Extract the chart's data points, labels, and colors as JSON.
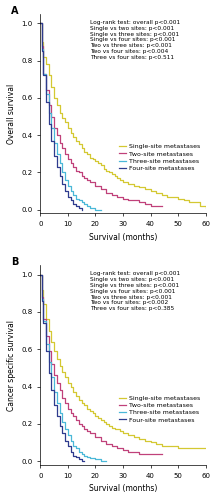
{
  "figsize": [
    2.17,
    5.0
  ],
  "dpi": 100,
  "panel_A": {
    "label": "A",
    "ylabel": "Overall survival",
    "xlabel": "Survival (months)",
    "xlim": [
      0,
      60
    ],
    "ylim": [
      -0.02,
      1.05
    ],
    "yticks": [
      0.0,
      0.2,
      0.4,
      0.6,
      0.8,
      1.0
    ],
    "xticks": [
      0,
      10,
      20,
      30,
      40,
      50,
      60
    ],
    "annotation": "Log-rank test: overall p<0.001\nSingle vs two sites: p<0.001\nSingle vs three sites: p<0.001\nSingle vs four sites: p<0.001\nTwo vs three sites: p<0.001\nTwo vs four sites: p<0.004\nThree vs four sites: p<0.511",
    "curves": {
      "single": {
        "color": "#d4c832",
        "label": "Single-site metastases",
        "x": [
          0,
          0.5,
          1,
          2,
          3,
          4,
          5,
          6,
          7,
          8,
          9,
          10,
          11,
          12,
          13,
          14,
          15,
          16,
          17,
          18,
          19,
          20,
          21,
          22,
          23,
          24,
          25,
          26,
          27,
          28,
          29,
          30,
          32,
          34,
          36,
          38,
          40,
          42,
          44,
          46,
          48,
          50,
          52,
          54,
          56,
          58,
          60
        ],
        "y": [
          1.0,
          0.9,
          0.82,
          0.78,
          0.72,
          0.66,
          0.6,
          0.56,
          0.52,
          0.49,
          0.47,
          0.44,
          0.41,
          0.39,
          0.37,
          0.35,
          0.33,
          0.31,
          0.3,
          0.28,
          0.27,
          0.26,
          0.25,
          0.24,
          0.22,
          0.21,
          0.2,
          0.19,
          0.18,
          0.17,
          0.16,
          0.15,
          0.14,
          0.13,
          0.12,
          0.11,
          0.1,
          0.09,
          0.08,
          0.07,
          0.07,
          0.06,
          0.05,
          0.04,
          0.04,
          0.02,
          0.01
        ]
      },
      "two": {
        "color": "#c0417a",
        "label": "Two-site metastases",
        "x": [
          0,
          0.5,
          1,
          2,
          3,
          4,
          5,
          6,
          7,
          8,
          9,
          10,
          11,
          12,
          13,
          14,
          15,
          16,
          17,
          18,
          20,
          22,
          24,
          26,
          28,
          30,
          32,
          34,
          36,
          38,
          40,
          42,
          44
        ],
        "y": [
          1.0,
          0.88,
          0.73,
          0.64,
          0.56,
          0.5,
          0.44,
          0.4,
          0.36,
          0.33,
          0.3,
          0.27,
          0.25,
          0.23,
          0.21,
          0.2,
          0.18,
          0.17,
          0.16,
          0.15,
          0.13,
          0.11,
          0.09,
          0.08,
          0.07,
          0.06,
          0.05,
          0.05,
          0.04,
          0.03,
          0.02,
          0.02,
          0.02
        ]
      },
      "three": {
        "color": "#4ab8d8",
        "label": "Three-site metastases",
        "x": [
          0,
          0.5,
          1,
          2,
          3,
          4,
          5,
          6,
          7,
          8,
          9,
          10,
          11,
          12,
          13,
          14,
          15,
          16,
          17,
          18,
          20,
          22
        ],
        "y": [
          1.0,
          0.86,
          0.73,
          0.62,
          0.52,
          0.44,
          0.36,
          0.3,
          0.25,
          0.2,
          0.16,
          0.13,
          0.1,
          0.08,
          0.06,
          0.05,
          0.04,
          0.03,
          0.02,
          0.01,
          0.0,
          0.0
        ]
      },
      "four": {
        "color": "#2e3b8e",
        "label": "Four-site metastases",
        "x": [
          0,
          0.5,
          1,
          2,
          3,
          4,
          5,
          6,
          7,
          8,
          9,
          10,
          11,
          12,
          13,
          14,
          15
        ],
        "y": [
          1.0,
          0.85,
          0.72,
          0.58,
          0.46,
          0.37,
          0.29,
          0.23,
          0.18,
          0.14,
          0.1,
          0.07,
          0.05,
          0.03,
          0.02,
          0.01,
          0.0
        ]
      }
    }
  },
  "panel_B": {
    "label": "B",
    "ylabel": "Cancer specific survival",
    "xlabel": "Survival (months)",
    "xlim": [
      0,
      60
    ],
    "ylim": [
      -0.02,
      1.05
    ],
    "yticks": [
      0.0,
      0.2,
      0.4,
      0.6,
      0.8,
      1.0
    ],
    "xticks": [
      0,
      10,
      20,
      30,
      40,
      50,
      60
    ],
    "annotation": "Log-rank test: overall p<0.001\nSingle vs two sites: p<0.001\nSingle vs three sites: p<0.001\nSingle vs four sites: p<0.001\nTwo vs three sites: p<0.001\nTwo vs four sites: p<0.002\nThree vs four sites: p<0.385",
    "curves": {
      "single": {
        "color": "#d4c832",
        "label": "Single-site metastases",
        "x": [
          0,
          0.5,
          1,
          2,
          3,
          4,
          5,
          6,
          7,
          8,
          9,
          10,
          11,
          12,
          13,
          14,
          15,
          16,
          17,
          18,
          19,
          20,
          21,
          22,
          23,
          24,
          25,
          26,
          27,
          28,
          29,
          30,
          32,
          34,
          36,
          38,
          40,
          42,
          44,
          46,
          48,
          50,
          52,
          54,
          56,
          58,
          60
        ],
        "y": [
          1.0,
          0.92,
          0.84,
          0.76,
          0.7,
          0.64,
          0.59,
          0.55,
          0.51,
          0.48,
          0.45,
          0.42,
          0.4,
          0.37,
          0.35,
          0.33,
          0.31,
          0.3,
          0.28,
          0.27,
          0.26,
          0.24,
          0.23,
          0.22,
          0.21,
          0.2,
          0.19,
          0.18,
          0.17,
          0.17,
          0.16,
          0.15,
          0.14,
          0.13,
          0.12,
          0.11,
          0.1,
          0.09,
          0.08,
          0.08,
          0.08,
          0.07,
          0.07,
          0.07,
          0.07,
          0.07,
          0.07
        ]
      },
      "two": {
        "color": "#c0417a",
        "label": "Two-site metastases",
        "x": [
          0,
          0.5,
          1,
          2,
          3,
          4,
          5,
          6,
          7,
          8,
          9,
          10,
          11,
          12,
          13,
          14,
          15,
          16,
          17,
          18,
          20,
          22,
          24,
          26,
          28,
          30,
          32,
          34,
          36,
          38,
          40,
          42,
          44
        ],
        "y": [
          1.0,
          0.88,
          0.76,
          0.67,
          0.59,
          0.52,
          0.46,
          0.42,
          0.38,
          0.34,
          0.31,
          0.28,
          0.26,
          0.24,
          0.22,
          0.2,
          0.19,
          0.17,
          0.16,
          0.15,
          0.13,
          0.11,
          0.09,
          0.08,
          0.07,
          0.06,
          0.05,
          0.05,
          0.04,
          0.04,
          0.04,
          0.04,
          0.04
        ]
      },
      "three": {
        "color": "#4ab8d8",
        "label": "Three-site metastases",
        "x": [
          0,
          0.5,
          1,
          2,
          3,
          4,
          5,
          6,
          7,
          8,
          9,
          10,
          11,
          12,
          13,
          14,
          15,
          16,
          17,
          18,
          20,
          22,
          24
        ],
        "y": [
          1.0,
          0.87,
          0.75,
          0.63,
          0.53,
          0.45,
          0.37,
          0.31,
          0.26,
          0.21,
          0.17,
          0.14,
          0.11,
          0.08,
          0.07,
          0.05,
          0.04,
          0.03,
          0.02,
          0.015,
          0.01,
          0.0,
          0.0
        ]
      },
      "four": {
        "color": "#2e3b8e",
        "label": "Four-site metastases",
        "x": [
          0,
          0.5,
          1,
          2,
          3,
          4,
          5,
          6,
          7,
          8,
          9,
          10,
          11,
          12,
          13,
          14,
          15,
          16
        ],
        "y": [
          1.0,
          0.86,
          0.74,
          0.59,
          0.47,
          0.38,
          0.3,
          0.24,
          0.19,
          0.15,
          0.11,
          0.08,
          0.05,
          0.03,
          0.02,
          0.01,
          0.0,
          0.0
        ]
      }
    }
  },
  "font_size_annotation": 4.2,
  "font_size_label": 5.5,
  "font_size_tick": 5.0,
  "font_size_legend": 4.5,
  "font_size_panel_label": 7,
  "line_width": 0.9
}
